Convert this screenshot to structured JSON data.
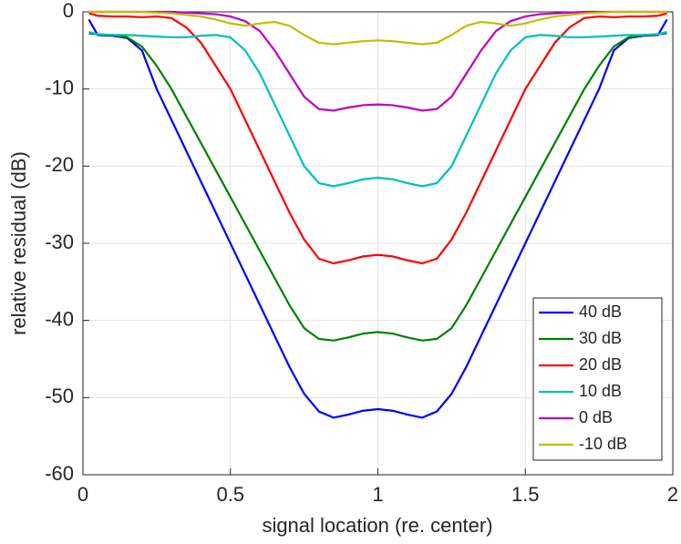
{
  "chart_data": {
    "type": "line",
    "xlabel": "signal location (re. center)",
    "ylabel": "relative residual (dB)",
    "x": [
      0.02,
      0.05,
      0.1,
      0.15,
      0.2,
      0.25,
      0.3,
      0.35,
      0.4,
      0.45,
      0.5,
      0.55,
      0.6,
      0.65,
      0.7,
      0.75,
      0.8,
      0.85,
      0.9,
      0.95,
      1,
      1.05,
      1.1,
      1.15,
      1.2,
      1.25,
      1.3,
      1.35,
      1.4,
      1.45,
      1.5,
      1.55,
      1.6,
      1.65,
      1.7,
      1.75,
      1.8,
      1.85,
      1.9,
      1.95,
      1.98
    ],
    "series": [
      {
        "name": "40 dB",
        "color": "#0000ff",
        "values": [
          -1,
          -3,
          -3.1,
          -3.4,
          -5,
          -10,
          -14,
          -18,
          -22,
          -26,
          -30,
          -34,
          -38,
          -42,
          -46,
          -49.5,
          -51.8,
          -52.6,
          -52.2,
          -51.7,
          -51.5,
          -51.7,
          -52.2,
          -52.6,
          -51.8,
          -49.5,
          -46,
          -42,
          -38,
          -34,
          -30,
          -26,
          -22,
          -18,
          -14,
          -10,
          -5,
          -3.4,
          -3.1,
          -3,
          -1
        ]
      },
      {
        "name": "30 dB",
        "color": "#008000",
        "values": [
          -2.8,
          -2.9,
          -3,
          -3.3,
          -4.5,
          -7,
          -10,
          -13.5,
          -17,
          -20.5,
          -24,
          -27.5,
          -31,
          -34.5,
          -38,
          -41,
          -42.4,
          -42.6,
          -42.2,
          -41.7,
          -41.5,
          -41.7,
          -42.2,
          -42.6,
          -42.4,
          -41,
          -38,
          -34.5,
          -31,
          -27.5,
          -24,
          -20.5,
          -17,
          -13.5,
          -10,
          -7,
          -4.5,
          -3.3,
          -3,
          -2.9,
          -2.8
        ]
      },
      {
        "name": "20 dB",
        "color": "#ff0000",
        "values": [
          -0.2,
          -0.5,
          -0.6,
          -0.6,
          -0.7,
          -0.6,
          -0.8,
          -2,
          -4,
          -7,
          -10,
          -14,
          -18,
          -22,
          -26,
          -29.5,
          -32,
          -32.6,
          -32.2,
          -31.7,
          -31.5,
          -31.7,
          -32.2,
          -32.6,
          -32,
          -29.5,
          -26,
          -22,
          -18,
          -14,
          -10,
          -7,
          -4,
          -2,
          -0.8,
          -0.6,
          -0.7,
          -0.6,
          -0.6,
          -0.5,
          -0.2
        ]
      },
      {
        "name": "10 dB",
        "color": "#00bfbf",
        "values": [
          -2.6,
          -2.9,
          -3,
          -3,
          -3.1,
          -3.2,
          -3.3,
          -3.3,
          -3.1,
          -3,
          -3.3,
          -5,
          -8,
          -12,
          -16,
          -20,
          -22.2,
          -22.6,
          -22.2,
          -21.7,
          -21.5,
          -21.7,
          -22.2,
          -22.6,
          -22.2,
          -20,
          -16,
          -12,
          -8,
          -5,
          -3.3,
          -3,
          -3.1,
          -3.3,
          -3.3,
          -3.2,
          -3.1,
          -3,
          -3,
          -2.9,
          -2.6
        ]
      },
      {
        "name": "0 dB",
        "color": "#bf00bf",
        "values": [
          0,
          0,
          0,
          0,
          0,
          0,
          0,
          -0.1,
          -0.2,
          -0.3,
          -0.6,
          -1.2,
          -2.5,
          -5,
          -8,
          -11,
          -12.6,
          -12.8,
          -12.4,
          -12.1,
          -12,
          -12.1,
          -12.4,
          -12.8,
          -12.6,
          -11,
          -8,
          -5,
          -2.5,
          -1.2,
          -0.6,
          -0.3,
          -0.2,
          -0.1,
          0,
          0,
          0,
          0,
          0,
          0,
          0
        ]
      },
      {
        "name": "-10 dB",
        "color": "#bfbf00",
        "values": [
          0,
          0,
          0,
          0,
          0,
          -0.1,
          -0.2,
          -0.4,
          -0.6,
          -1,
          -1.5,
          -1.8,
          -1.5,
          -1.3,
          -1.8,
          -3,
          -4,
          -4.2,
          -4,
          -3.8,
          -3.7,
          -3.8,
          -4,
          -4.2,
          -4,
          -3,
          -1.8,
          -1.3,
          -1.5,
          -1.8,
          -1.5,
          -1,
          -0.6,
          -0.4,
          -0.2,
          -0.1,
          0,
          0,
          0,
          0,
          0
        ]
      }
    ],
    "xlim": [
      0,
      2
    ],
    "xticks": [
      0,
      0.5,
      1,
      1.5,
      2
    ],
    "ylim": [
      -60,
      0
    ],
    "yticks": [
      -60,
      -50,
      -40,
      -30,
      -20,
      -10,
      0
    ],
    "grid": true,
    "legend": "lower right"
  }
}
